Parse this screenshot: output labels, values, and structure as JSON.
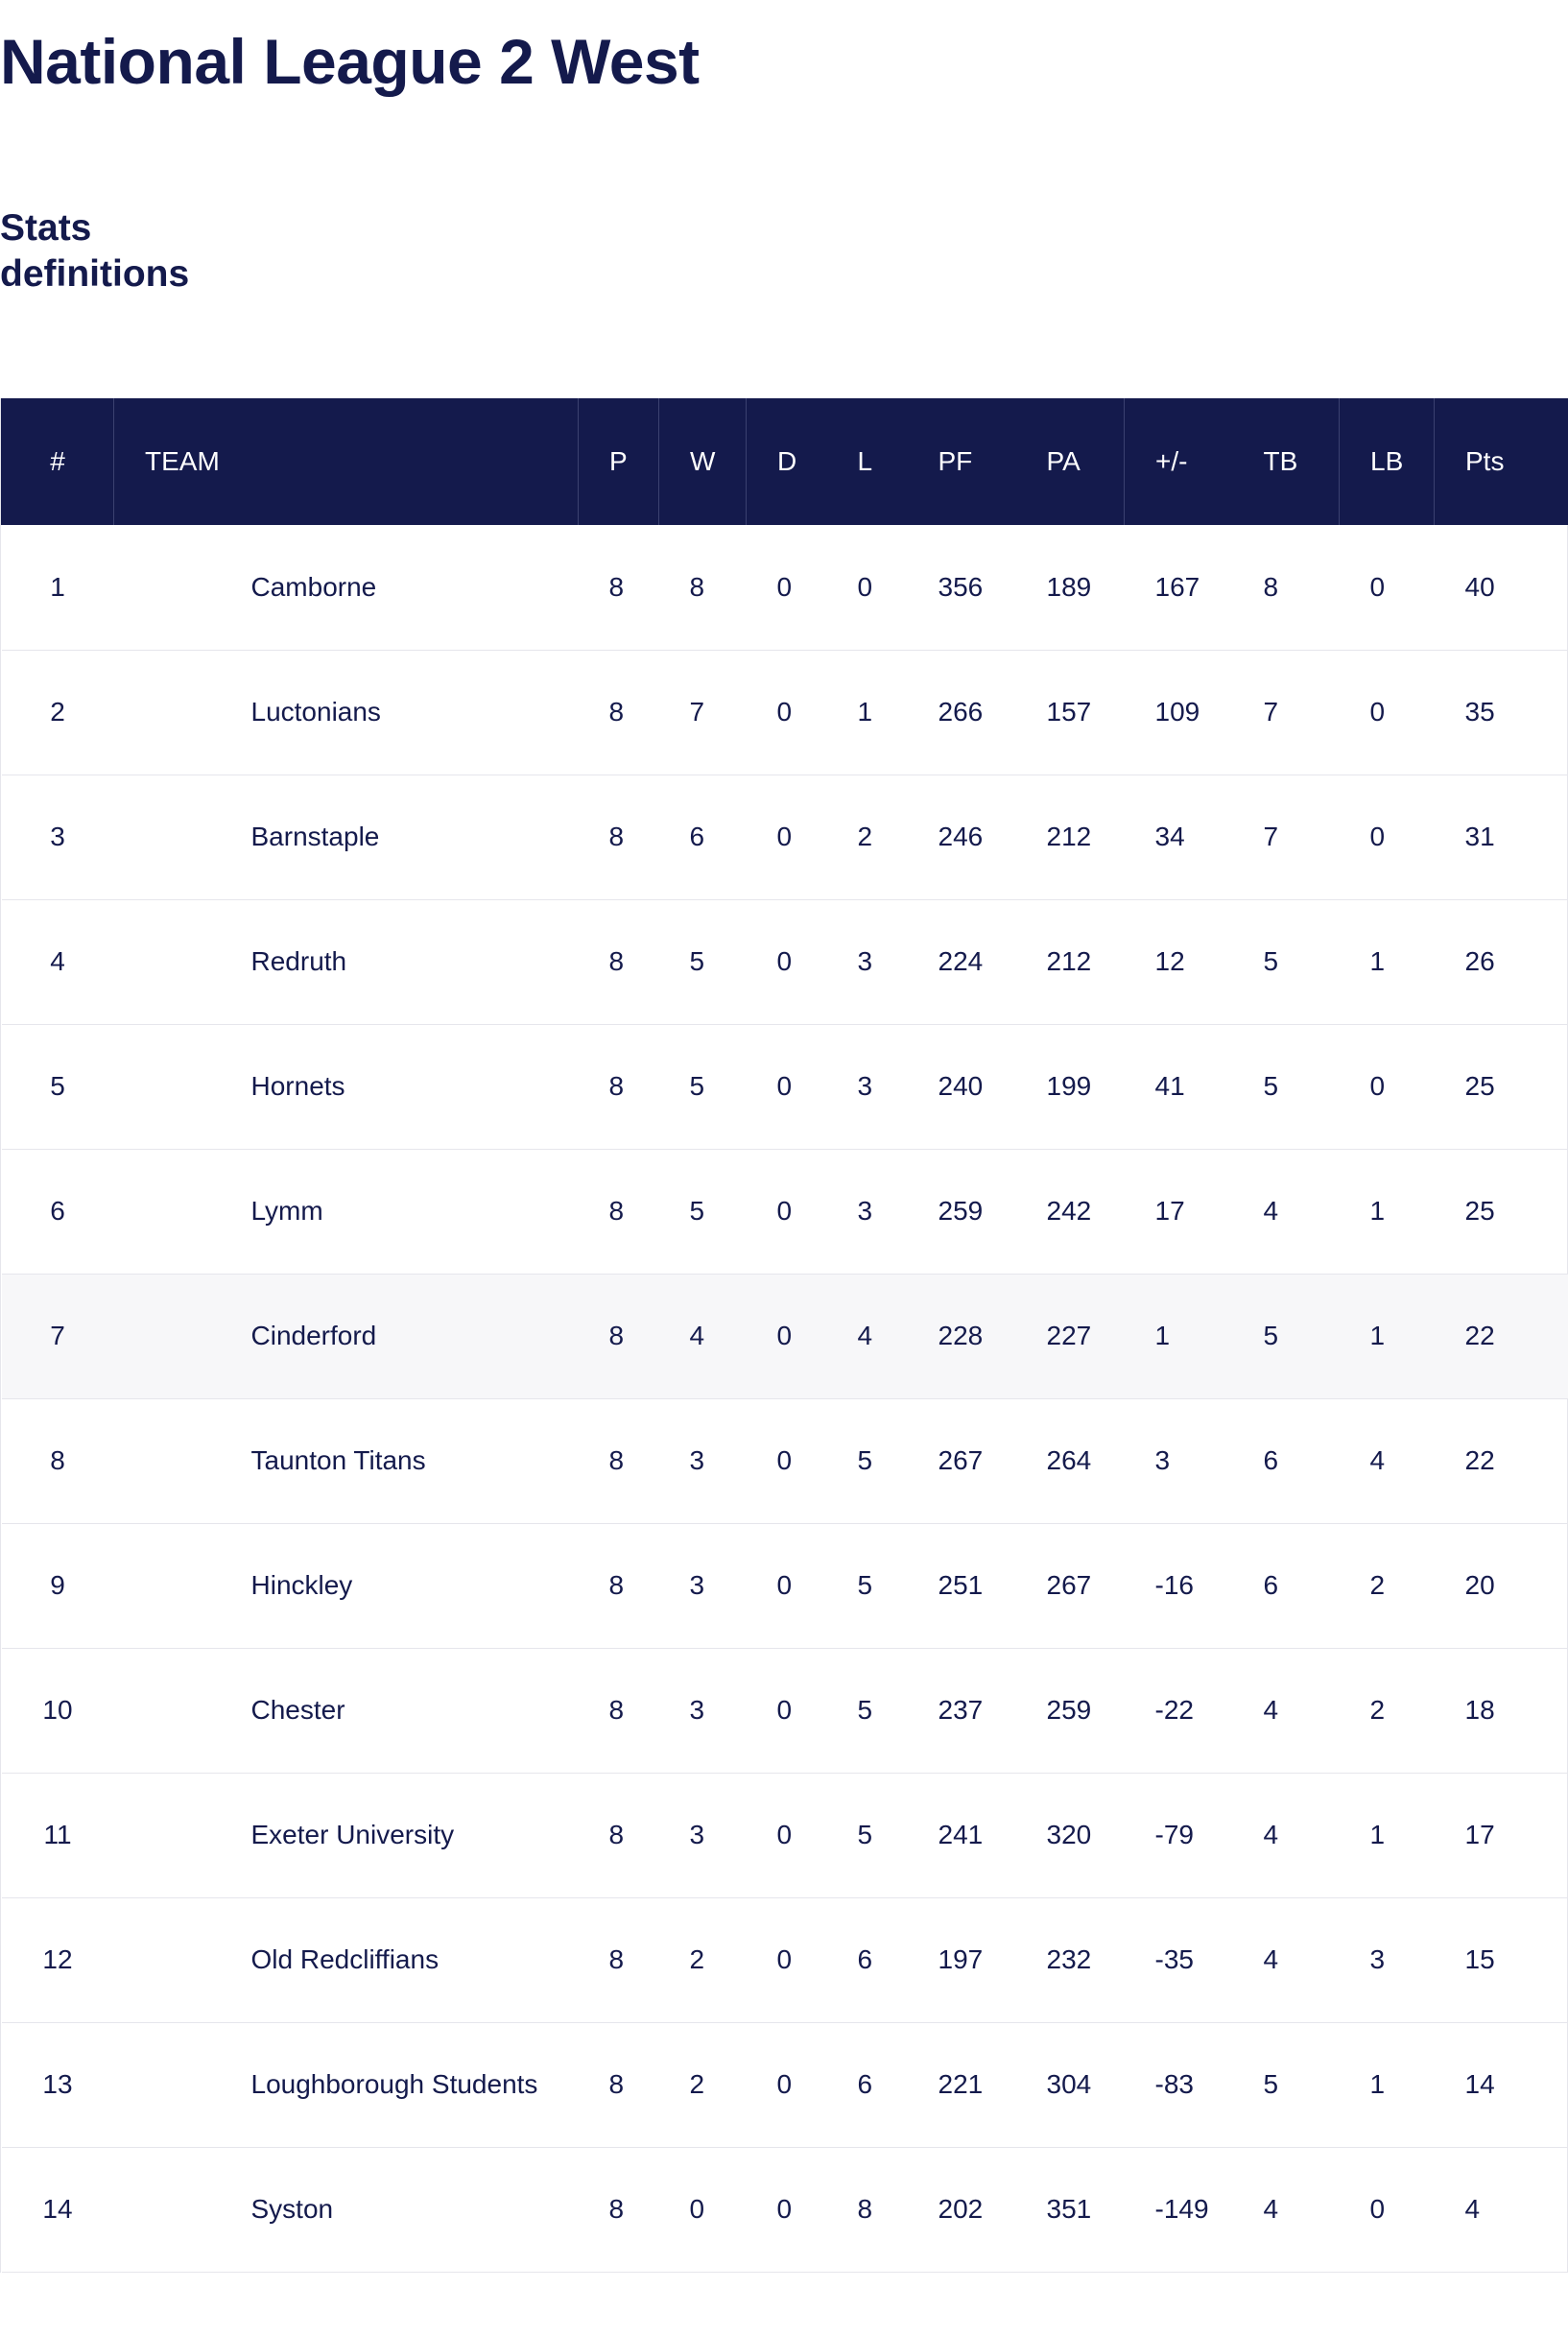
{
  "header": {
    "title": "National League 2 West",
    "stats_link_line1": "Stats",
    "stats_link_line2": "definitions"
  },
  "table": {
    "columns": [
      "#",
      "TEAM",
      "P",
      "W",
      "D",
      "L",
      "PF",
      "PA",
      "+/-",
      "TB",
      "LB",
      "Pts"
    ],
    "rows": [
      {
        "pos": "1",
        "team": "Camborne",
        "p": "8",
        "w": "8",
        "d": "0",
        "l": "0",
        "pf": "356",
        "pa": "189",
        "diff": "167",
        "tb": "8",
        "lb": "0",
        "pts": "40"
      },
      {
        "pos": "2",
        "team": "Luctonians",
        "p": "8",
        "w": "7",
        "d": "0",
        "l": "1",
        "pf": "266",
        "pa": "157",
        "diff": "109",
        "tb": "7",
        "lb": "0",
        "pts": "35"
      },
      {
        "pos": "3",
        "team": "Barnstaple",
        "p": "8",
        "w": "6",
        "d": "0",
        "l": "2",
        "pf": "246",
        "pa": "212",
        "diff": "34",
        "tb": "7",
        "lb": "0",
        "pts": "31"
      },
      {
        "pos": "4",
        "team": "Redruth",
        "p": "8",
        "w": "5",
        "d": "0",
        "l": "3",
        "pf": "224",
        "pa": "212",
        "diff": "12",
        "tb": "5",
        "lb": "1",
        "pts": "26"
      },
      {
        "pos": "5",
        "team": "Hornets",
        "p": "8",
        "w": "5",
        "d": "0",
        "l": "3",
        "pf": "240",
        "pa": "199",
        "diff": "41",
        "tb": "5",
        "lb": "0",
        "pts": "25"
      },
      {
        "pos": "6",
        "team": "Lymm",
        "p": "8",
        "w": "5",
        "d": "0",
        "l": "3",
        "pf": "259",
        "pa": "242",
        "diff": "17",
        "tb": "4",
        "lb": "1",
        "pts": "25"
      },
      {
        "pos": "7",
        "team": "Cinderford",
        "p": "8",
        "w": "4",
        "d": "0",
        "l": "4",
        "pf": "228",
        "pa": "227",
        "diff": "1",
        "tb": "5",
        "lb": "1",
        "pts": "22"
      },
      {
        "pos": "8",
        "team": "Taunton Titans",
        "p": "8",
        "w": "3",
        "d": "0",
        "l": "5",
        "pf": "267",
        "pa": "264",
        "diff": "3",
        "tb": "6",
        "lb": "4",
        "pts": "22"
      },
      {
        "pos": "9",
        "team": "Hinckley",
        "p": "8",
        "w": "3",
        "d": "0",
        "l": "5",
        "pf": "251",
        "pa": "267",
        "diff": "-16",
        "tb": "6",
        "lb": "2",
        "pts": "20"
      },
      {
        "pos": "10",
        "team": "Chester",
        "p": "8",
        "w": "3",
        "d": "0",
        "l": "5",
        "pf": "237",
        "pa": "259",
        "diff": "-22",
        "tb": "4",
        "lb": "2",
        "pts": "18"
      },
      {
        "pos": "11",
        "team": "Exeter University",
        "p": "8",
        "w": "3",
        "d": "0",
        "l": "5",
        "pf": "241",
        "pa": "320",
        "diff": "-79",
        "tb": "4",
        "lb": "1",
        "pts": "17"
      },
      {
        "pos": "12",
        "team": "Old Redcliffians",
        "p": "8",
        "w": "2",
        "d": "0",
        "l": "6",
        "pf": "197",
        "pa": "232",
        "diff": "-35",
        "tb": "4",
        "lb": "3",
        "pts": "15"
      },
      {
        "pos": "13",
        "team": "Loughborough Students",
        "p": "8",
        "w": "2",
        "d": "0",
        "l": "6",
        "pf": "221",
        "pa": "304",
        "diff": "-83",
        "tb": "5",
        "lb": "1",
        "pts": "14"
      },
      {
        "pos": "14",
        "team": "Syston",
        "p": "8",
        "w": "0",
        "d": "0",
        "l": "8",
        "pf": "202",
        "pa": "351",
        "diff": "-149",
        "tb": "4",
        "lb": "0",
        "pts": "4"
      }
    ],
    "highlighted_row": 7
  },
  "colors": {
    "navy": "#141a4c",
    "row_highlight": "#f7f7f9",
    "row_divider": "#e6e6ec"
  }
}
